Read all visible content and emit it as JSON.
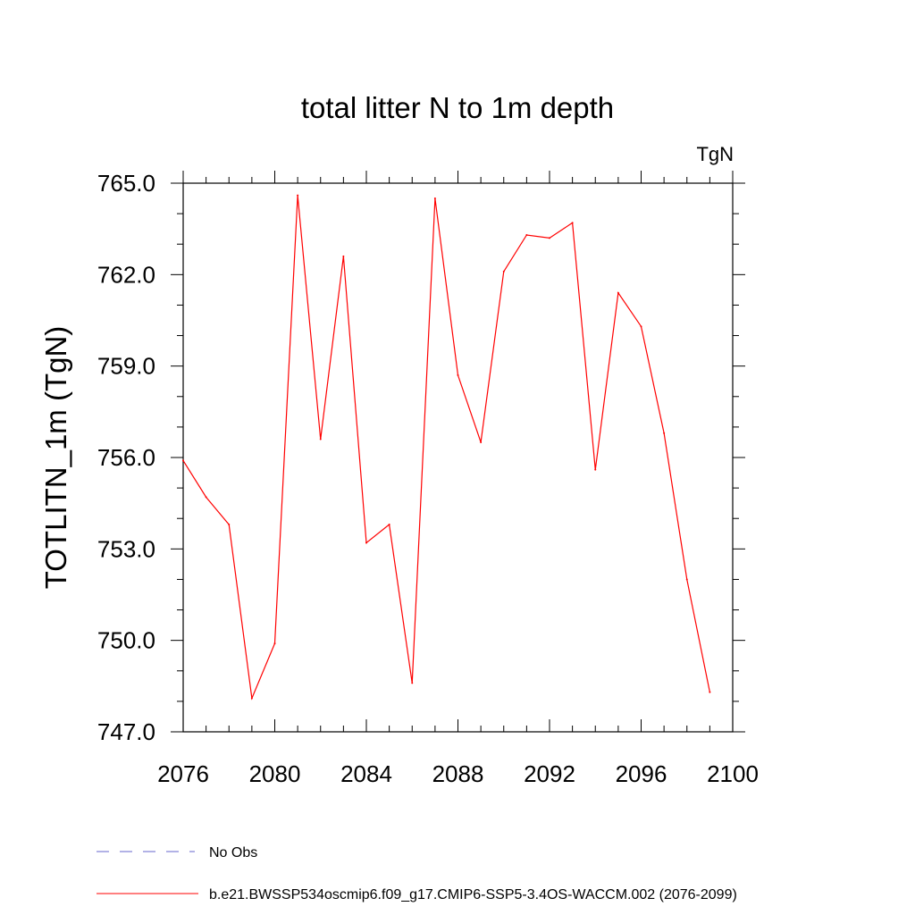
{
  "chart_data": {
    "type": "line",
    "title": "total litter N to 1m depth",
    "units_label": "TgN",
    "ylabel": "TOTLITN_1m  (TgN)",
    "xlabel": "",
    "xlim": [
      2076,
      2100
    ],
    "ylim": [
      747.0,
      765.0
    ],
    "x_ticks": [
      2076,
      2080,
      2084,
      2088,
      2092,
      2096,
      2100
    ],
    "x_tick_labels": [
      "2076",
      "2080",
      "2084",
      "2088",
      "2092",
      "2096",
      "2100"
    ],
    "y_ticks": [
      747.0,
      750.0,
      753.0,
      756.0,
      759.0,
      762.0,
      765.0
    ],
    "y_tick_labels": [
      "747.0",
      "750.0",
      "753.0",
      "756.0",
      "759.0",
      "762.0",
      "765.0"
    ],
    "series": [
      {
        "name": "b.e21.BWSSP534oscmip6.f09_g17.CMIP6-SSP5-3.4OS-WACCM.002 (2076-2099)",
        "color": "#ff0000",
        "x": [
          2076,
          2077,
          2078,
          2079,
          2080,
          2081,
          2082,
          2083,
          2084,
          2085,
          2086,
          2087,
          2088,
          2089,
          2090,
          2091,
          2092,
          2093,
          2094,
          2095,
          2096,
          2097,
          2098,
          2099
        ],
        "values": [
          755.9,
          754.7,
          753.8,
          748.1,
          749.9,
          764.6,
          756.6,
          762.6,
          753.2,
          753.8,
          748.6,
          764.5,
          758.7,
          756.5,
          762.1,
          763.3,
          763.2,
          763.7,
          755.6,
          761.4,
          760.3,
          756.8,
          752.0,
          748.3
        ]
      }
    ],
    "legend": [
      {
        "label": "No Obs",
        "style": "dashed",
        "color": "#6666cc"
      },
      {
        "label": "b.e21.BWSSP534oscmip6.f09_g17.CMIP6-SSP5-3.4OS-WACCM.002 (2076-2099)",
        "style": "solid",
        "color": "#ff0000"
      }
    ],
    "legend_position": "bottom-left",
    "grid": false
  }
}
